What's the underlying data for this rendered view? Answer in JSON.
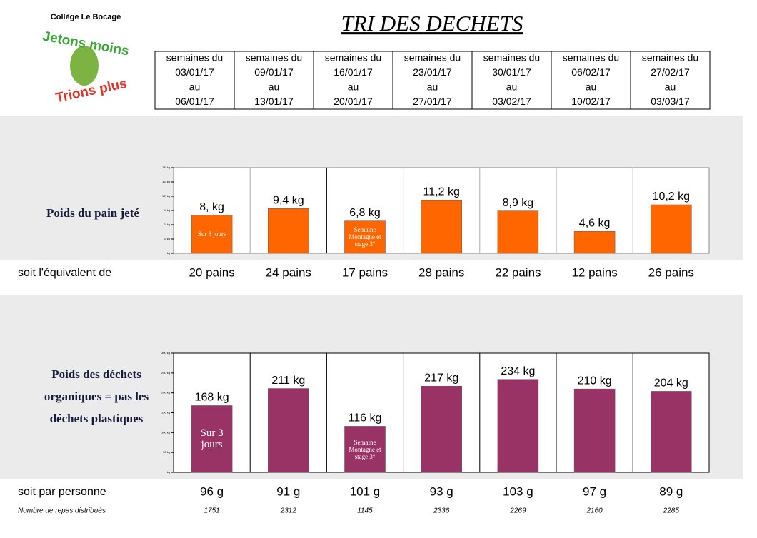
{
  "header": {
    "school": "Collège Le Bocage",
    "logo_top": "Jetons moins",
    "logo_bottom": "Trions plus",
    "title": "TRI DES DECHETS"
  },
  "weeks": [
    {
      "label": "semaines du",
      "from": "03/01/17",
      "sep": "au",
      "to": "06/01/17"
    },
    {
      "label": "semaines du",
      "from": "09/01/17",
      "sep": "au",
      "to": "13/01/17"
    },
    {
      "label": "semaines du",
      "from": "16/01/17",
      "sep": "au",
      "to": "20/01/17"
    },
    {
      "label": "semaines du",
      "from": "23/01/17",
      "sep": "au",
      "to": "27/01/17"
    },
    {
      "label": "semaines du",
      "from": "30/01/17",
      "sep": "au",
      "to": "03/02/17"
    },
    {
      "label": "semaines du",
      "from": "06/02/17",
      "sep": "au",
      "to": "10/02/17"
    },
    {
      "label": "semaines du",
      "from": "27/02/17",
      "sep": "au",
      "to": "03/03/17"
    }
  ],
  "chart_data": [
    {
      "type": "bar",
      "ylabel": "Poids du pain jeté",
      "color": "#ff6600",
      "values": [
        8,
        9.4,
        6.8,
        11.2,
        8.9,
        4.6,
        10.2
      ],
      "value_labels": [
        "8, kg",
        "9,4 kg",
        "6,8 kg",
        "11,2 kg",
        "8,9 kg",
        "4,6 kg",
        "10,2 kg"
      ],
      "bar_notes": [
        "Sur 3 jours",
        null,
        "Semaine Montagne et stage 3°",
        null,
        null,
        null,
        null
      ],
      "ylim": [
        0,
        18
      ],
      "yticks": [
        {
          "value": 0,
          "label": ", kg"
        },
        {
          "value": 3,
          "label": "3, kg"
        },
        {
          "value": 6,
          "label": "6, kg"
        },
        {
          "value": 9,
          "label": "9, kg"
        },
        {
          "value": 12,
          "label": "12, kg"
        },
        {
          "value": 15,
          "label": "15, kg"
        },
        {
          "value": 18,
          "label": "18, kg"
        }
      ]
    },
    {
      "type": "bar",
      "ylabel": "Poids des déchets organiques = pas les déchets plastiques",
      "color": "#993366",
      "values": [
        168,
        211,
        116,
        217,
        234,
        210,
        204
      ],
      "value_labels": [
        "168 kg",
        "211 kg",
        "116 kg",
        "217 kg",
        "234 kg",
        "210 kg",
        "204 kg"
      ],
      "bar_notes": [
        "Sur 3 jours",
        null,
        "Semaine Montagne et stage 3°",
        null,
        null,
        null,
        null
      ],
      "ylim": [
        0,
        300
      ],
      "yticks": [
        {
          "value": 0,
          "label": "kg"
        },
        {
          "value": 50,
          "label": "50 kg"
        },
        {
          "value": 100,
          "label": "100 kg"
        },
        {
          "value": 150,
          "label": "150 kg"
        },
        {
          "value": 200,
          "label": "200 kg"
        },
        {
          "value": 250,
          "label": "250 kg"
        },
        {
          "value": 300,
          "label": "300 kg"
        }
      ]
    }
  ],
  "rows": {
    "equivalent": {
      "label": "soit l'équivalent de",
      "values": [
        "20 pains",
        "24 pains",
        "17 pains",
        "28 pains",
        "22 pains",
        "12 pains",
        "26 pains"
      ]
    },
    "per_person": {
      "label": "soit par personne",
      "values": [
        "96 g",
        "91 g",
        "101 g",
        "93 g",
        "103 g",
        "97 g",
        "89 g"
      ]
    },
    "meals": {
      "label": "Nombre de repas distribués",
      "values": [
        1751,
        2312,
        1145,
        2336,
        2269,
        2160,
        2285
      ]
    }
  }
}
